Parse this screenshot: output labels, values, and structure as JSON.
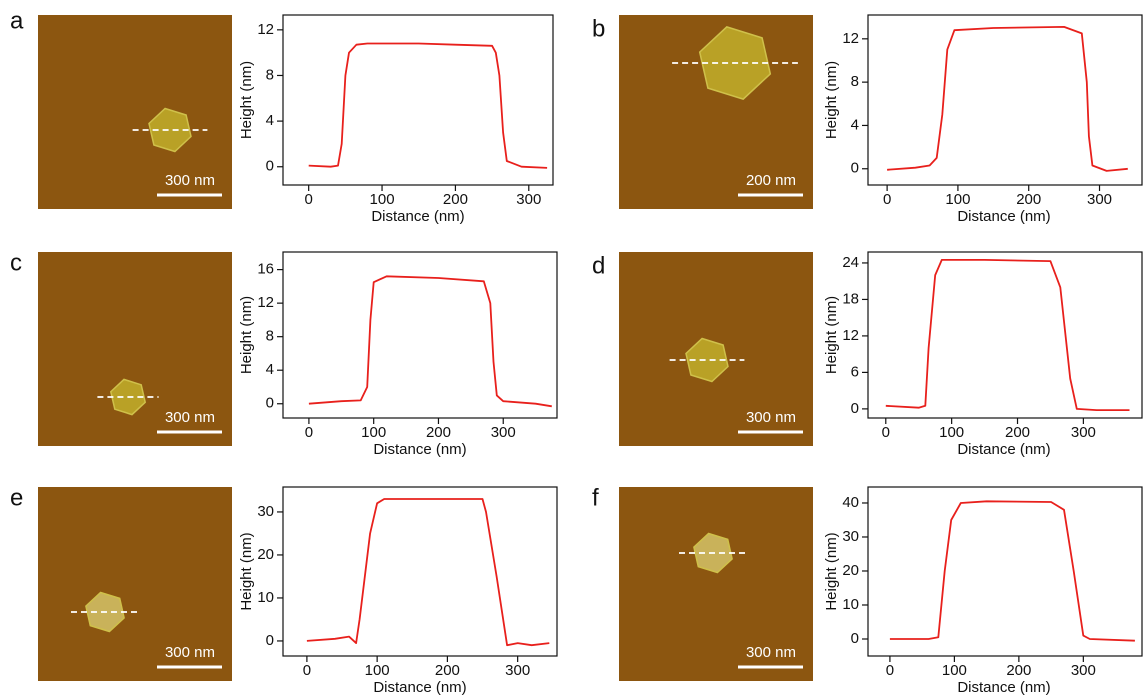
{
  "chart_data": [
    {
      "type": "line",
      "panel": "a",
      "scale_bar": "300 nm",
      "xlabel": "Distance (nm)",
      "ylabel": "Height (nm)",
      "color": "#e8201c",
      "x": [
        0,
        30,
        40,
        45,
        50,
        55,
        65,
        80,
        150,
        200,
        250,
        255,
        260,
        265,
        270,
        290,
        325
      ],
      "values": [
        0.1,
        0,
        0.1,
        2,
        8,
        10,
        10.7,
        10.8,
        10.8,
        10.7,
        10.6,
        10,
        8,
        3,
        0.5,
        0,
        -0.1
      ],
      "xlim": [
        -35,
        333
      ],
      "ylim": [
        -1.6,
        13.3
      ],
      "xticks": [
        0,
        100,
        200,
        300
      ],
      "yticks": [
        0,
        4,
        8,
        12
      ]
    },
    {
      "type": "line",
      "panel": "b",
      "scale_bar": "200 nm",
      "xlabel": "Distance (nm)",
      "ylabel": "Height (nm)",
      "color": "#e8201c",
      "x": [
        0,
        40,
        60,
        70,
        78,
        85,
        95,
        150,
        250,
        275,
        282,
        285,
        290,
        310,
        340
      ],
      "values": [
        -0.1,
        0.1,
        0.3,
        1,
        5,
        11,
        12.8,
        13,
        13.1,
        12.5,
        8,
        3,
        0.3,
        -0.2,
        0
      ],
      "xlim": [
        -27,
        360
      ],
      "ylim": [
        -1.5,
        14.2
      ],
      "xticks": [
        0,
        100,
        200,
        300
      ],
      "yticks": [
        0,
        4,
        8,
        12
      ]
    },
    {
      "type": "line",
      "panel": "c",
      "scale_bar": "300 nm",
      "xlabel": "Distance (nm)",
      "ylabel": "Height (nm)",
      "color": "#e8201c",
      "x": [
        0,
        50,
        80,
        90,
        95,
        100,
        120,
        200,
        270,
        280,
        285,
        290,
        300,
        350,
        375
      ],
      "values": [
        0,
        0.3,
        0.4,
        2,
        10,
        14.5,
        15.2,
        15,
        14.6,
        12,
        5,
        1,
        0.3,
        0,
        -0.3
      ],
      "xlim": [
        -40,
        383
      ],
      "ylim": [
        -1.7,
        18.1
      ],
      "xticks": [
        0,
        100,
        200,
        300
      ],
      "yticks": [
        0,
        4,
        8,
        12,
        16
      ]
    },
    {
      "type": "line",
      "panel": "d",
      "scale_bar": "300 nm",
      "xlabel": "Distance (nm)",
      "ylabel": "Height (nm)",
      "color": "#e8201c",
      "x": [
        0,
        50,
        60,
        65,
        75,
        85,
        150,
        250,
        265,
        280,
        290,
        320,
        370
      ],
      "values": [
        0.5,
        0.2,
        0.5,
        10,
        22,
        24.5,
        24.5,
        24.3,
        20,
        5,
        0,
        -0.2,
        -0.2
      ],
      "xlim": [
        -27,
        389
      ],
      "ylim": [
        -1.5,
        25.8
      ],
      "xticks": [
        0,
        100,
        200,
        300
      ],
      "yticks": [
        0,
        6,
        12,
        18,
        24
      ]
    },
    {
      "type": "line",
      "panel": "e",
      "scale_bar": "300 nm",
      "xlabel": "Distance (nm)",
      "ylabel": "Height (nm)",
      "color": "#e8201c",
      "x": [
        0,
        40,
        60,
        70,
        75,
        90,
        100,
        110,
        200,
        250,
        255,
        270,
        285,
        300,
        320,
        345
      ],
      "values": [
        0,
        0.5,
        1,
        -0.5,
        5,
        25,
        32,
        33,
        33,
        33,
        30,
        15,
        -1,
        -0.5,
        -1,
        -0.5
      ],
      "xlim": [
        -34,
        356
      ],
      "ylim": [
        -3.5,
        35.8
      ],
      "xticks": [
        0,
        100,
        200,
        300
      ],
      "yticks": [
        0,
        10,
        20,
        30
      ]
    },
    {
      "type": "line",
      "panel": "f",
      "scale_bar": "300 nm",
      "xlabel": "Distance (nm)",
      "ylabel": "Height (nm)",
      "color": "#e8201c",
      "x": [
        0,
        60,
        75,
        85,
        95,
        110,
        150,
        250,
        270,
        285,
        300,
        310,
        380
      ],
      "values": [
        0,
        0,
        0.5,
        20,
        35,
        40,
        40.5,
        40.3,
        38,
        20,
        1,
        0,
        -0.5
      ],
      "xlim": [
        -34,
        391
      ],
      "ylim": [
        -5,
        44.7
      ],
      "xticks": [
        0,
        100,
        200,
        300
      ],
      "yticks": [
        0,
        10,
        20,
        30,
        40
      ]
    }
  ]
}
